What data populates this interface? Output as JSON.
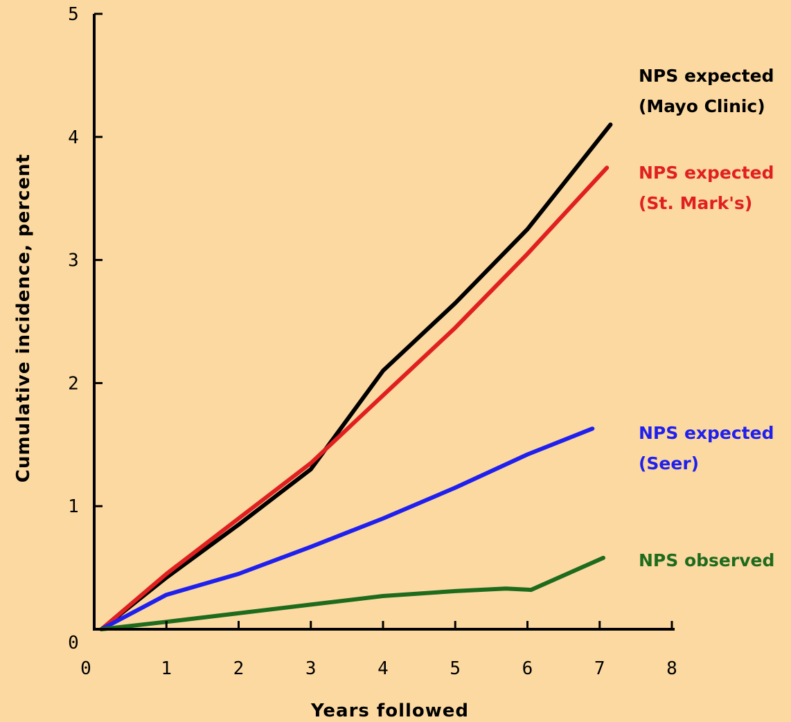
{
  "chart_data": {
    "type": "line",
    "xlabel": "Years followed",
    "ylabel": "Cumulative incidence, percent",
    "xlim": [
      0,
      8
    ],
    "ylim": [
      0,
      5
    ],
    "xticks": [
      "0",
      "1",
      "2",
      "3",
      "4",
      "5",
      "6",
      "7",
      "8"
    ],
    "yticks": [
      "0",
      "1",
      "2",
      "3",
      "4",
      "5"
    ],
    "grid": false,
    "legend_placement": "right",
    "series": [
      {
        "name": "NPS expected (Mayo Clinic)",
        "label_lines": [
          "NPS expected",
          "(Mayo Clinic)"
        ],
        "color": "#000000",
        "x": [
          0.1,
          1,
          2,
          3,
          4,
          5,
          6,
          7.15
        ],
        "y": [
          0.0,
          0.42,
          0.85,
          1.3,
          2.1,
          2.65,
          3.25,
          4.1
        ]
      },
      {
        "name": "NPS expected (St. Mark's)",
        "label_lines": [
          "NPS expected",
          "(St. Mark's)"
        ],
        "color": "#e02020",
        "x": [
          0.1,
          1,
          2,
          3,
          4,
          5,
          6,
          7.1
        ],
        "y": [
          0.0,
          0.45,
          0.9,
          1.35,
          1.9,
          2.45,
          3.05,
          3.75
        ]
      },
      {
        "name": "NPS expected (Seer)",
        "label_lines": [
          "NPS expected",
          "(Seer)"
        ],
        "color": "#2020ee",
        "x": [
          0.1,
          1,
          2,
          3,
          4,
          5,
          6,
          6.9
        ],
        "y": [
          0.0,
          0.28,
          0.45,
          0.67,
          0.9,
          1.15,
          1.42,
          1.63
        ]
      },
      {
        "name": "NPS observed",
        "label_lines": [
          "NPS observed"
        ],
        "color": "#1e6b1e",
        "x": [
          0.1,
          1,
          2,
          3,
          4,
          5,
          5.7,
          6.05,
          7.05
        ],
        "y": [
          0.0,
          0.06,
          0.13,
          0.2,
          0.27,
          0.31,
          0.33,
          0.32,
          0.58
        ]
      }
    ]
  }
}
